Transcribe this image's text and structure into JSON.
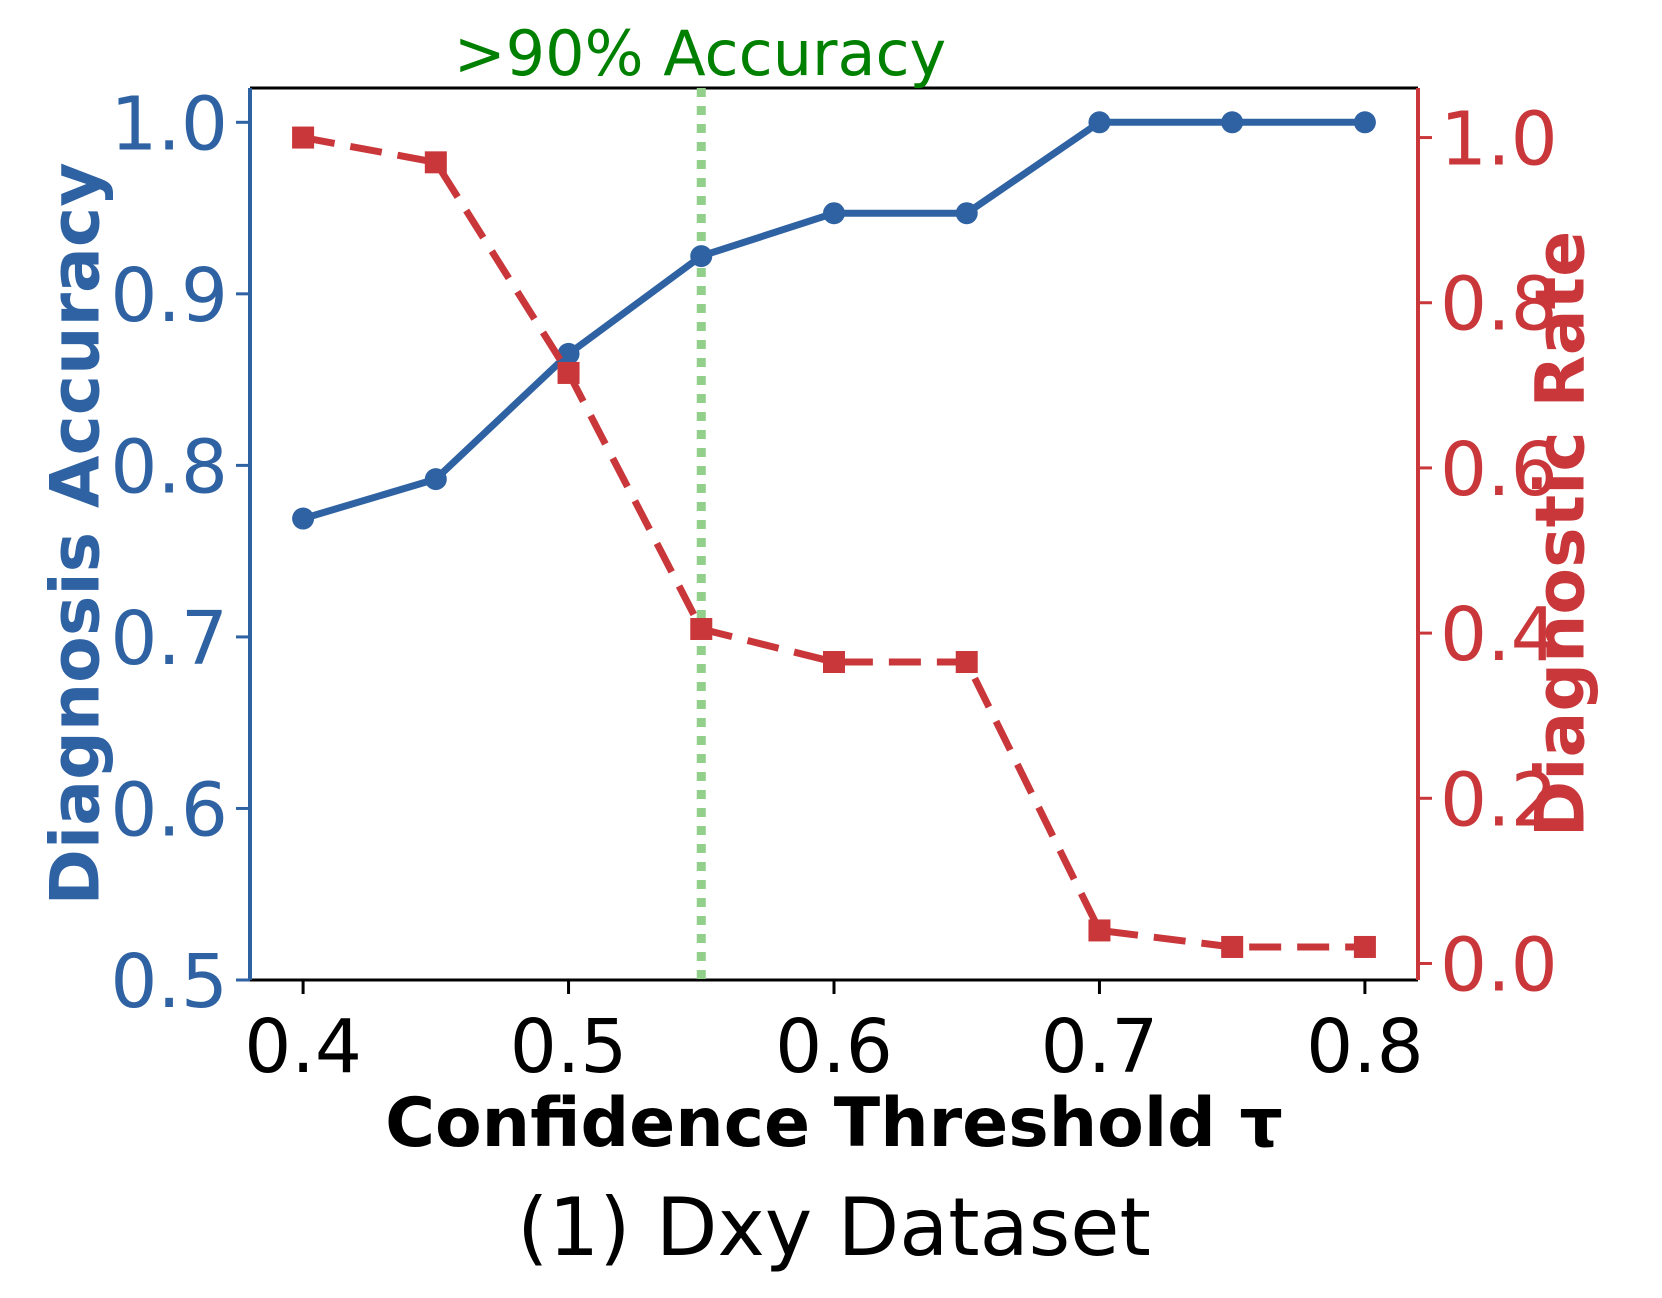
{
  "chart_data": {
    "type": "line",
    "subtitle": "(1) Dxy Dataset",
    "xlabel": "Confidence Threshold τ",
    "ylabel_left": "Diagnosis Accuracy",
    "ylabel_right": "Diagnostic Rate",
    "x": [
      0.4,
      0.45,
      0.5,
      0.55,
      0.6,
      0.65,
      0.7,
      0.75,
      0.8
    ],
    "xlim": [
      0.38,
      0.82
    ],
    "ylim_left": [
      0.5,
      1.02
    ],
    "ylim_right": [
      -0.02,
      1.06
    ],
    "xticks": [
      "0.4",
      "0.5",
      "0.6",
      "0.7",
      "0.8"
    ],
    "yticks_left": [
      "0.5",
      "0.6",
      "0.7",
      "0.8",
      "0.9",
      "1.0"
    ],
    "yticks_right": [
      "0.0",
      "0.2",
      "0.4",
      "0.6",
      "0.8",
      "1.0"
    ],
    "series": [
      {
        "axis": "left",
        "color": "#2f62a3",
        "style": "solid",
        "marker": "circle",
        "values": [
          0.769,
          0.792,
          0.865,
          0.922,
          0.947,
          0.947,
          1.0,
          1.0,
          1.0
        ]
      },
      {
        "axis": "right",
        "color": "#c9373a",
        "style": "dashed",
        "marker": "square",
        "values": [
          1.0,
          0.97,
          0.715,
          0.405,
          0.365,
          0.365,
          0.04,
          0.02,
          0.02
        ]
      }
    ],
    "annotation": {
      "text": ">90% Accuracy",
      "x": 0.55,
      "color": "#008000",
      "line_color": "#92cf8a",
      "line_style": "dotted"
    },
    "grid": false
  }
}
